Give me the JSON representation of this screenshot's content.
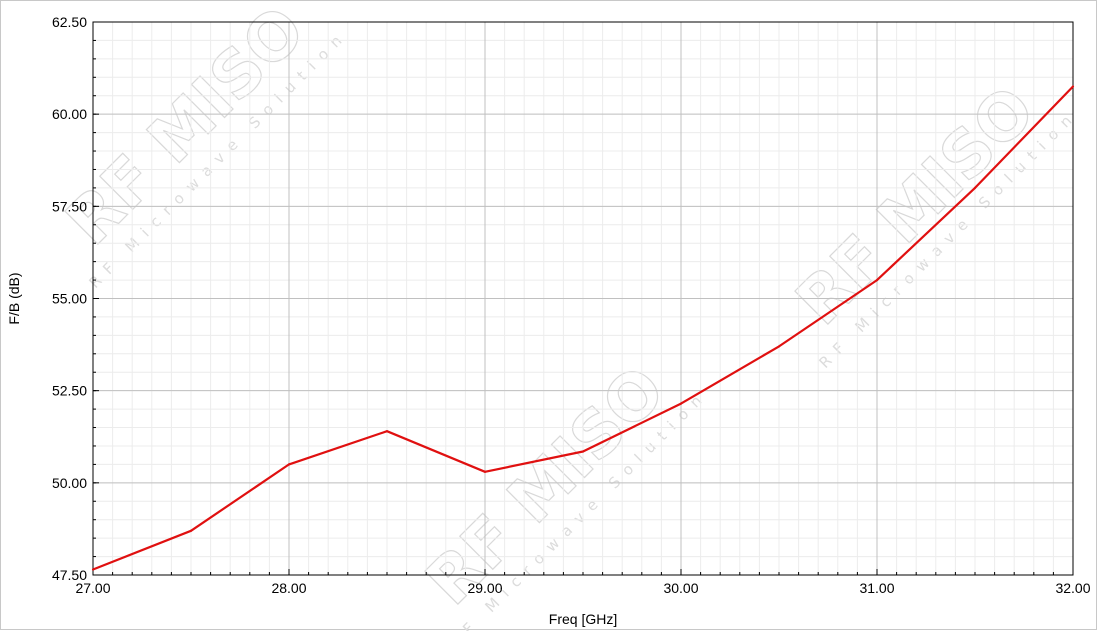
{
  "chart_data": {
    "type": "line",
    "xlabel": "Freq [GHz]",
    "ylabel": "F/B (dB)",
    "xlim": [
      27.0,
      32.0
    ],
    "ylim": [
      47.5,
      62.5
    ],
    "x_ticks": [
      "27.00",
      "28.00",
      "29.00",
      "30.00",
      "31.00",
      "32.00"
    ],
    "x_tick_values": [
      27.0,
      28.0,
      29.0,
      30.0,
      31.0,
      32.0
    ],
    "y_ticks": [
      "47.50",
      "50.00",
      "52.50",
      "55.00",
      "57.50",
      "60.00",
      "62.50"
    ],
    "y_tick_values": [
      47.5,
      50.0,
      52.5,
      55.0,
      57.5,
      60.0,
      62.5
    ],
    "grid": true,
    "minor_grid": true,
    "series": [
      {
        "color": "#e01010",
        "x": [
          27.0,
          27.5,
          28.0,
          28.5,
          29.0,
          29.5,
          30.0,
          30.5,
          31.0,
          31.5,
          32.0
        ],
        "y": [
          47.65,
          48.7,
          50.5,
          51.4,
          50.3,
          50.85,
          52.15,
          53.7,
          55.5,
          58.0,
          60.75
        ]
      }
    ]
  },
  "watermark": {
    "brand": "RF MISO",
    "tagline": "RF Microwave Solution",
    "trademark": "™"
  }
}
